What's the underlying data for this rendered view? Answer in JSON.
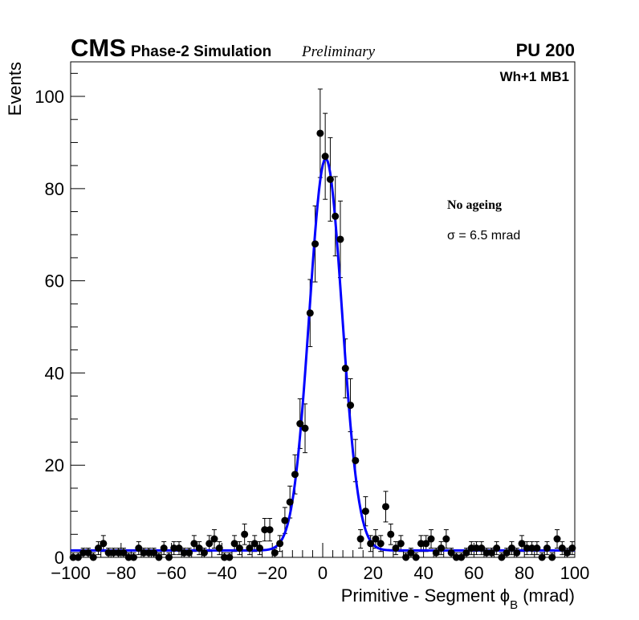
{
  "header": {
    "experiment": "CMS",
    "subtitle": "Phase-2 Simulation",
    "status": "Preliminary",
    "pileup": "PU 200"
  },
  "chart_data": {
    "type": "scatter",
    "title": "",
    "station_label": "Wh+1 MB1",
    "xlabel": "Primitive - Segment ϕ",
    "xlabel_sub": "B",
    "xlabel_unit": "(mrad)",
    "ylabel": "Events",
    "xlim": [
      -100,
      100
    ],
    "ylim": [
      0,
      107.5
    ],
    "x_ticks": [
      -100,
      -80,
      -60,
      -40,
      -20,
      0,
      20,
      40,
      60,
      80,
      100
    ],
    "x_tick_labels": [
      "−100",
      "−80",
      "−60",
      "−40",
      "−20",
      "0",
      "20",
      "40",
      "60",
      "80",
      "100"
    ],
    "y_ticks": [
      0,
      20,
      40,
      60,
      80,
      100
    ],
    "y_tick_labels": [
      "0",
      "20",
      "40",
      "60",
      "80",
      "100"
    ],
    "annotations": {
      "condition": "No ageing",
      "resolution": "σ = 6.5 mrad"
    },
    "grid": false,
    "series": [
      {
        "name": "Simulation",
        "color": "#000000",
        "x": [
          -99,
          -97,
          -95,
          -93,
          -91,
          -89,
          -87,
          -85,
          -83,
          -81,
          -79,
          -77,
          -75,
          -73,
          -71,
          -69,
          -67,
          -65,
          -63,
          -61,
          -59,
          -57,
          -55,
          -53,
          -51,
          -49,
          -47,
          -45,
          -43,
          -41,
          -39,
          -37,
          -35,
          -33,
          -31,
          -29,
          -27,
          -25,
          -23,
          -21,
          -19,
          -17,
          -15,
          -13,
          -11,
          -9,
          -7,
          -5,
          -3,
          -1,
          1,
          3,
          5,
          7,
          9,
          11,
          13,
          15,
          17,
          19,
          21,
          23,
          25,
          27,
          29,
          31,
          33,
          35,
          37,
          39,
          41,
          43,
          45,
          47,
          49,
          51,
          53,
          55,
          57,
          59,
          61,
          63,
          65,
          67,
          69,
          71,
          73,
          75,
          77,
          79,
          81,
          83,
          85,
          87,
          89,
          91,
          93,
          95,
          97,
          99
        ],
        "y": [
          0,
          0,
          1,
          1,
          0,
          2,
          3,
          1,
          1,
          1,
          1,
          0,
          0,
          2,
          1,
          1,
          1,
          0,
          2,
          0,
          2,
          2,
          1,
          1,
          3,
          2,
          1,
          3,
          4,
          2,
          0,
          0,
          3,
          2,
          5,
          2,
          3,
          2,
          6,
          6,
          1,
          3,
          8,
          12,
          18,
          29,
          28,
          53,
          68,
          92,
          87,
          82,
          74,
          69,
          41,
          33,
          21,
          4,
          10,
          3,
          4,
          3,
          11,
          5,
          2,
          3,
          0,
          1,
          0,
          3,
          3,
          4,
          1,
          2,
          4,
          1,
          0,
          0,
          1,
          2,
          2,
          2,
          1,
          1,
          2,
          0,
          1,
          2,
          1,
          3,
          2,
          2,
          2,
          0,
          2,
          0,
          4,
          2,
          1,
          2
        ]
      },
      {
        "name": "Gaussian fit",
        "color": "#0000ff",
        "fit": {
          "amplitude": 85,
          "mean": 1.2,
          "sigma": 6.5,
          "constant": 1.5
        }
      }
    ]
  }
}
